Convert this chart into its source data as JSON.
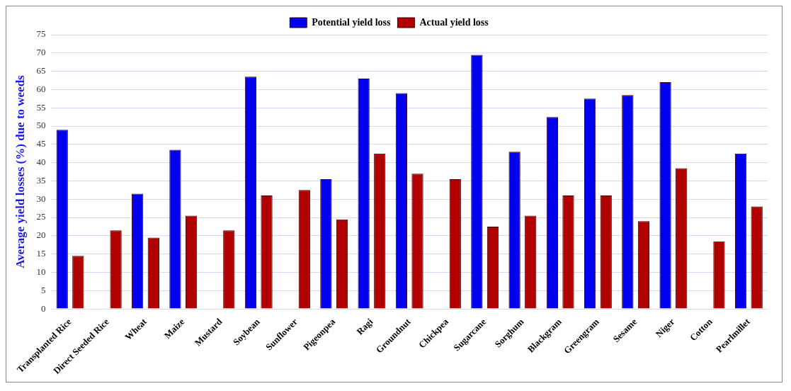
{
  "chart_data": {
    "type": "bar",
    "ylabel": "Average yield losses (%) due to weeds",
    "categories": [
      "Transplanted Rice",
      "Direct Seeded Rice",
      "Wheat",
      "Maize",
      "Mustard",
      "Soybean",
      "Sunflower",
      "Pigeonpea",
      "Ragi",
      "Groundnut",
      "Chickpea",
      "Sugarcane",
      "Sorghum",
      "Blackgram",
      "Greengram",
      "Sesame",
      "Niger",
      "Cotton",
      "Pearlmillet"
    ],
    "series": [
      {
        "name": "Potential yield loss",
        "color": "#0000ee",
        "values": [
          49,
          null,
          31.5,
          43.5,
          null,
          63.5,
          null,
          35.5,
          63,
          59,
          null,
          69.5,
          43,
          52.5,
          57.5,
          58.5,
          62,
          null,
          42.5
        ]
      },
      {
        "name": "Actual yield loss",
        "color": "#b00000",
        "values": [
          14.5,
          21.5,
          19.5,
          25.5,
          21.5,
          31,
          32.5,
          24.5,
          42.5,
          37,
          35.5,
          22.5,
          25.5,
          31,
          31,
          24,
          38.5,
          18.5,
          28
        ]
      }
    ],
    "ylim": [
      0,
      75
    ],
    "yticks": [
      0,
      5,
      10,
      15,
      20,
      25,
      30,
      35,
      40,
      45,
      50,
      55,
      60,
      65,
      70,
      75
    ],
    "grid": "y",
    "legend": "top"
  }
}
